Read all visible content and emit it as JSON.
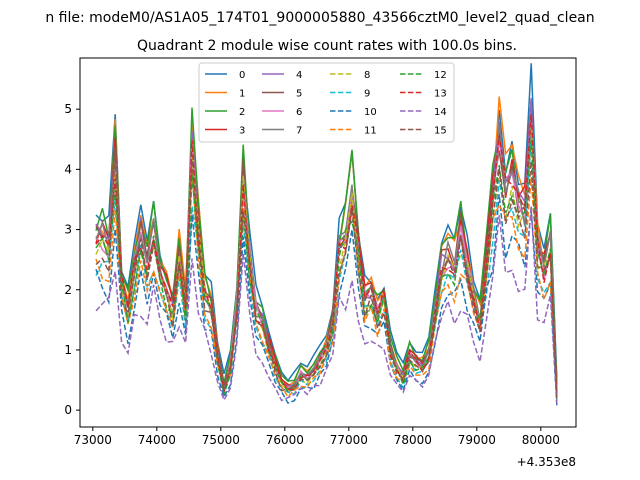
{
  "figure": {
    "suptitle": "n file: modeM0/AS1A05_174T01_9000005880_43566cztM0_level2_quad_clean",
    "offset_label": "+4.353e8"
  },
  "chart_data": {
    "type": "line",
    "title": "Quadrant 2 module wise count rates with 100.0s bins.",
    "xlabel": "",
    "ylabel": "",
    "x_offset": 435300000,
    "xlim": [
      72800,
      80550
    ],
    "ylim": [
      -0.28,
      5.85
    ],
    "x_ticks": [
      73000,
      74000,
      75000,
      76000,
      77000,
      78000,
      79000,
      80000
    ],
    "y_ticks": [
      0,
      1,
      2,
      3,
      4,
      5
    ],
    "grid": false,
    "legend_placement": "upper center, 4 columns",
    "x": [
      73050,
      73150,
      73250,
      73350,
      73450,
      73550,
      73650,
      73750,
      73850,
      73950,
      74050,
      74150,
      74250,
      74350,
      74450,
      74550,
      74650,
      74750,
      74850,
      74950,
      75050,
      75150,
      75250,
      75350,
      75450,
      75550,
      75650,
      75750,
      75850,
      75950,
      76050,
      76150,
      76250,
      76350,
      76450,
      76550,
      76650,
      76750,
      76850,
      76950,
      77050,
      77150,
      77250,
      77350,
      77450,
      77550,
      77650,
      77750,
      77850,
      77950,
      78050,
      78150,
      78250,
      78350,
      78450,
      78550,
      78650,
      78750,
      78850,
      78950,
      79050,
      79150,
      79250,
      79350,
      79450,
      79550,
      79650,
      79750,
      79850,
      79950,
      80050,
      80150,
      80250
    ],
    "base_profile": [
      2.95,
      2.95,
      2.75,
      4.4,
      2.2,
      1.7,
      2.45,
      3.0,
      2.55,
      3.05,
      2.25,
      2.05,
      1.7,
      2.6,
      1.8,
      4.5,
      3.1,
      2.0,
      1.75,
      0.95,
      0.35,
      0.75,
      1.8,
      4.0,
      2.6,
      1.7,
      1.5,
      1.1,
      0.75,
      0.45,
      0.35,
      0.4,
      0.6,
      0.55,
      0.65,
      0.85,
      1.05,
      1.55,
      2.75,
      3.05,
      3.85,
      2.75,
      1.9,
      2.0,
      1.65,
      1.95,
      1.05,
      0.75,
      0.55,
      0.95,
      0.8,
      0.75,
      0.95,
      1.7,
      2.45,
      2.65,
      2.5,
      3.05,
      2.5,
      1.95,
      1.55,
      2.55,
      3.6,
      4.65,
      3.75,
      4.1,
      3.55,
      3.4,
      5.0,
      2.75,
      2.4,
      2.85,
      0.3
    ],
    "series": [
      {
        "name": "0",
        "color": "#1f77b4",
        "dash": "solid",
        "scale": 1.03,
        "shift": 0.18,
        "seed": 1
      },
      {
        "name": "1",
        "color": "#ff7f0e",
        "dash": "solid",
        "scale": 1.05,
        "shift": 0.05,
        "seed": 2
      },
      {
        "name": "2",
        "color": "#2ca02c",
        "dash": "solid",
        "scale": 1.02,
        "shift": 0.12,
        "seed": 3
      },
      {
        "name": "3",
        "color": "#d62728",
        "dash": "solid",
        "scale": 1.0,
        "shift": 0.05,
        "seed": 4
      },
      {
        "name": "4",
        "color": "#9467bd",
        "dash": "solid",
        "scale": 0.98,
        "shift": 0.0,
        "seed": 5
      },
      {
        "name": "5",
        "color": "#8c564b",
        "dash": "solid",
        "scale": 0.99,
        "shift": 0.02,
        "seed": 6
      },
      {
        "name": "6",
        "color": "#e377c2",
        "dash": "solid",
        "scale": 0.97,
        "shift": 0.0,
        "seed": 7
      },
      {
        "name": "7",
        "color": "#7f7f7f",
        "dash": "solid",
        "scale": 0.98,
        "shift": 0.0,
        "seed": 8
      },
      {
        "name": "8",
        "color": "#bcbd22",
        "dash": "dashed",
        "scale": 0.93,
        "shift": -0.02,
        "seed": 9
      },
      {
        "name": "9",
        "color": "#17becf",
        "dash": "dashed",
        "scale": 0.85,
        "shift": -0.05,
        "seed": 10
      },
      {
        "name": "10",
        "color": "#1f77b4",
        "dash": "dashed",
        "scale": 0.75,
        "shift": -0.08,
        "seed": 11
      },
      {
        "name": "11",
        "color": "#ff7f0e",
        "dash": "dashed",
        "scale": 0.82,
        "shift": -0.03,
        "seed": 12
      },
      {
        "name": "12",
        "color": "#2ca02c",
        "dash": "dashed",
        "scale": 0.9,
        "shift": 0.0,
        "seed": 13
      },
      {
        "name": "13",
        "color": "#d62728",
        "dash": "dashed",
        "scale": 0.95,
        "shift": 0.0,
        "seed": 14
      },
      {
        "name": "14",
        "color": "#9467bd",
        "dash": "dashed",
        "scale": 0.62,
        "shift": -0.05,
        "seed": 15
      },
      {
        "name": "15",
        "color": "#8c564b",
        "dash": "dashed",
        "scale": 0.9,
        "shift": -0.02,
        "seed": 16
      }
    ]
  }
}
